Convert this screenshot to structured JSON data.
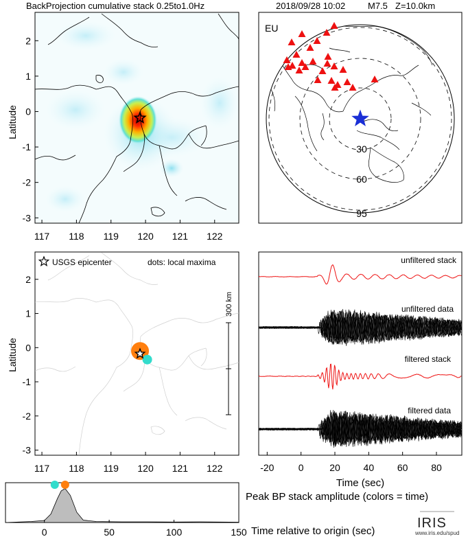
{
  "header": {
    "title": "BackProjection cumulative stack 0.25to1.0Hz",
    "event": "2018/09/28 10:02",
    "magnitude": "M7.5",
    "depth": "Z=10.0km"
  },
  "colors": {
    "station": "#ee1111",
    "epicenter_star": "#1a2fd6",
    "stack_trace": "#ee1111",
    "data_trace": "#000000",
    "early_maximum": "#33dccc",
    "late_maximum": "#ff7f0e",
    "amplitude_fill": "#9a9a9a"
  },
  "bp_map": {
    "ylabel": "Latitude",
    "xticks": [
      "117",
      "118",
      "119",
      "120",
      "121",
      "122"
    ],
    "yticks": [
      "2",
      "1",
      "0",
      "-1",
      "-2",
      "-3"
    ],
    "epicenter_marker": "star-icon",
    "epicenter": {
      "lon": 119.84,
      "lat": -0.18
    }
  },
  "globe": {
    "region": "EU",
    "rings": [
      "30",
      "60",
      "95"
    ],
    "center_marker": "star-icon"
  },
  "maxima_map": {
    "ylabel": "Latitude",
    "xticks": [
      "117",
      "118",
      "119",
      "120",
      "121",
      "122"
    ],
    "yticks": [
      "2",
      "1",
      "0",
      "-1",
      "-2",
      "-3"
    ],
    "legend_epicenter": "USGS epicenter",
    "legend_dots": "dots: local maxima",
    "scale_label": "300 km"
  },
  "traces": {
    "labels": [
      "unfiltered stack",
      "unfiltered data",
      "filtered stack",
      "filtered data"
    ],
    "xlabel": "Time (sec)",
    "xticks": [
      "-20",
      "0",
      "20",
      "40",
      "60",
      "80"
    ]
  },
  "amplitude": {
    "title": "Peak BP stack amplitude (colors = time)",
    "xlabel": "Time relative to origin (sec)",
    "xticks": [
      "0",
      "50",
      "100",
      "150"
    ]
  },
  "logo": {
    "name": "IRIS",
    "url": "www.iris.edu/spud"
  },
  "chart_data": [
    {
      "type": "heatmap",
      "xlabel": "",
      "ylabel": "Latitude",
      "xlim": [
        116.8,
        122.7
      ],
      "ylim": [
        -3.15,
        2.8
      ],
      "peak": {
        "lon": 119.86,
        "lat": -0.15
      }
    },
    {
      "type": "scatter",
      "xlabel": "",
      "ylabel": "Latitude",
      "xlim": [
        116.8,
        122.7
      ],
      "ylim": [
        -3.15,
        2.8
      ],
      "epicenter": {
        "lon": 119.84,
        "lat": -0.18
      },
      "maxima": [
        {
          "lon": 119.84,
          "lat": -0.1,
          "time_sec": 16
        },
        {
          "lon": 120.05,
          "lat": -0.35,
          "time_sec": 9
        }
      ]
    },
    {
      "type": "line",
      "xlabel": "Time (sec)",
      "xlim": [
        -25,
        95
      ],
      "series": [
        {
          "name": "unfiltered stack"
        },
        {
          "name": "unfiltered data"
        },
        {
          "name": "filtered stack"
        },
        {
          "name": "filtered data"
        }
      ]
    },
    {
      "type": "area",
      "title": "Peak BP stack amplitude (colors = time)",
      "xlabel": "Time relative to origin (sec)",
      "xlim": [
        -30,
        150
      ],
      "x": [
        -30,
        -10,
        0,
        5,
        10,
        13,
        16,
        20,
        25,
        30,
        40,
        60,
        80,
        100,
        120,
        150
      ],
      "values": [
        0.0,
        0.03,
        0.06,
        0.25,
        0.7,
        0.93,
        1.0,
        0.8,
        0.3,
        0.07,
        0.03,
        0.02,
        0.02,
        0.015,
        0.02,
        0.01
      ],
      "ylim": [
        0,
        1.05
      ],
      "markers": [
        {
          "x": 8,
          "color": "#33dccc"
        },
        {
          "x": 16,
          "color": "#ff7f0e"
        }
      ]
    }
  ]
}
